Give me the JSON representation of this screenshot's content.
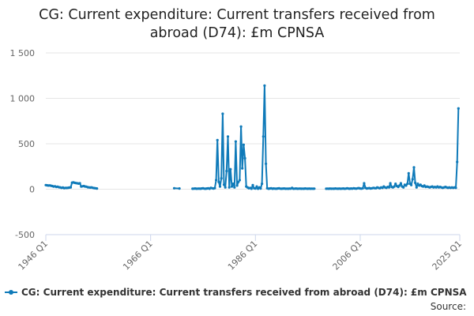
{
  "title_line1": "CG: Current expenditure: Current transfers received from",
  "title_line2": "abroad (D74): £m CPNSA",
  "source_label": "Source:",
  "colors": {
    "series": "#0f7ab9",
    "grid": "#e6e6e6",
    "axis": "#ccd6eb"
  },
  "chart_data": {
    "type": "line",
    "title": "CG: Current expenditure: Current transfers received from abroad (D74): £m CPNSA",
    "xlabel": "",
    "ylabel": "",
    "ylim": [
      -500,
      1500
    ],
    "yticks": [
      -500,
      0,
      500,
      1000,
      1500
    ],
    "ytick_labels": [
      "-500",
      "0",
      "500",
      "1 000",
      "1 500"
    ],
    "xlim": [
      1946.0,
      2025.0
    ],
    "xticks": [
      1946.0,
      1966.0,
      1986.0,
      2006.0,
      2025.0
    ],
    "xtick_labels": [
      "1946 Q1",
      "1966 Q1",
      "1986 Q1",
      "2006 Q1",
      "2025 Q1"
    ],
    "grid": true,
    "legend_position": "bottom-left",
    "x_unit": "quarters (year + (quarter-1)/4)",
    "series": [
      {
        "name": "CG: Current expenditure: Current transfers received from abroad (D74): £m CPNSA",
        "points": [
          [
            1946.0,
            45
          ],
          [
            1946.25,
            43
          ],
          [
            1946.5,
            40
          ],
          [
            1946.75,
            42
          ],
          [
            1947.0,
            38
          ],
          [
            1947.25,
            35
          ],
          [
            1947.5,
            30
          ],
          [
            1947.75,
            32
          ],
          [
            1948.0,
            25
          ],
          [
            1948.25,
            28
          ],
          [
            1948.5,
            22
          ],
          [
            1948.75,
            20
          ],
          [
            1949.0,
            15
          ],
          [
            1949.25,
            18
          ],
          [
            1949.5,
            12
          ],
          [
            1949.75,
            15
          ],
          [
            1950.0,
            14
          ],
          [
            1950.25,
            16
          ],
          [
            1950.5,
            18
          ],
          [
            1950.75,
            20
          ],
          [
            1951.0,
            72
          ],
          [
            1951.25,
            75
          ],
          [
            1951.5,
            70
          ],
          [
            1951.75,
            68
          ],
          [
            1952.0,
            65
          ],
          [
            1952.25,
            62
          ],
          [
            1952.5,
            65
          ],
          [
            1952.75,
            30
          ],
          [
            1953.0,
            32
          ],
          [
            1953.25,
            35
          ],
          [
            1953.5,
            30
          ],
          [
            1953.75,
            28
          ],
          [
            1954.0,
            22
          ],
          [
            1954.25,
            20
          ],
          [
            1954.5,
            18
          ],
          [
            1954.75,
            20
          ],
          [
            1955.0,
            15
          ],
          [
            1955.25,
            12
          ],
          [
            1955.5,
            10
          ],
          [
            1955.75,
            8
          ],
          null,
          [
            1970.5,
            10
          ],
          [
            1971.5,
            8
          ],
          null,
          [
            1974.0,
            5
          ],
          [
            1974.25,
            6
          ],
          [
            1974.5,
            8
          ],
          [
            1974.75,
            5
          ],
          [
            1975.0,
            6
          ],
          [
            1975.25,
            7
          ],
          [
            1975.5,
            5
          ],
          [
            1975.75,
            8
          ],
          [
            1976.0,
            10
          ],
          [
            1976.25,
            6
          ],
          [
            1976.5,
            5
          ],
          [
            1976.75,
            8
          ],
          [
            1977.0,
            10
          ],
          [
            1977.25,
            5
          ],
          [
            1977.5,
            15
          ],
          [
            1977.75,
            10
          ],
          [
            1978.0,
            8
          ],
          [
            1978.25,
            12
          ],
          [
            1978.5,
            100
          ],
          [
            1978.75,
            540
          ],
          [
            1979.0,
            80
          ],
          [
            1979.25,
            30
          ],
          [
            1979.5,
            120
          ],
          [
            1979.75,
            830
          ],
          [
            1980.0,
            50
          ],
          [
            1980.25,
            20
          ],
          [
            1980.5,
            200
          ],
          [
            1980.75,
            580
          ],
          [
            1981.0,
            20
          ],
          [
            1981.25,
            220
          ],
          [
            1981.5,
            30
          ],
          [
            1981.75,
            60
          ],
          [
            1982.0,
            20
          ],
          [
            1982.25,
            525
          ],
          [
            1982.5,
            40
          ],
          [
            1982.75,
            80
          ],
          [
            1983.0,
            100
          ],
          [
            1983.25,
            690
          ],
          [
            1983.5,
            230
          ],
          [
            1983.75,
            490
          ],
          [
            1984.0,
            340
          ],
          [
            1984.25,
            30
          ],
          [
            1984.5,
            20
          ],
          [
            1984.75,
            10
          ],
          [
            1985.0,
            15
          ],
          [
            1985.25,
            5
          ],
          [
            1985.5,
            45
          ],
          [
            1985.75,
            10
          ],
          [
            1986.0,
            8
          ],
          [
            1986.25,
            30
          ],
          [
            1986.5,
            5
          ],
          [
            1986.75,
            20
          ],
          [
            1987.0,
            8
          ],
          [
            1987.25,
            60
          ],
          [
            1987.5,
            580
          ],
          [
            1987.75,
            1140
          ],
          [
            1988.0,
            280
          ],
          [
            1988.25,
            10
          ],
          [
            1988.5,
            5
          ],
          [
            1988.75,
            8
          ],
          [
            1989.0,
            10
          ],
          [
            1989.25,
            5
          ],
          [
            1989.5,
            8
          ],
          [
            1989.75,
            6
          ],
          [
            1990.0,
            5
          ],
          [
            1990.25,
            8
          ],
          [
            1990.5,
            10
          ],
          [
            1990.75,
            6
          ],
          [
            1991.0,
            5
          ],
          [
            1991.25,
            7
          ],
          [
            1991.5,
            8
          ],
          [
            1991.75,
            5
          ],
          [
            1992.0,
            6
          ],
          [
            1992.25,
            5
          ],
          [
            1992.5,
            7
          ],
          [
            1992.75,
            6
          ],
          [
            1993.0,
            15
          ],
          [
            1993.25,
            5
          ],
          [
            1993.5,
            6
          ],
          [
            1993.75,
            8
          ],
          [
            1994.0,
            5
          ],
          [
            1994.25,
            6
          ],
          [
            1994.5,
            7
          ],
          [
            1994.75,
            5
          ],
          [
            1995.0,
            6
          ],
          [
            1995.25,
            5
          ],
          [
            1995.5,
            8
          ],
          [
            1995.75,
            6
          ],
          [
            1996.0,
            5
          ],
          [
            1996.25,
            7
          ],
          [
            1996.5,
            5
          ],
          [
            1996.75,
            6
          ],
          [
            1997.0,
            5
          ],
          [
            1997.25,
            6
          ],
          null,
          [
            1999.5,
            5
          ],
          [
            1999.75,
            6
          ],
          [
            2000.0,
            5
          ],
          [
            2000.25,
            7
          ],
          [
            2000.5,
            5
          ],
          [
            2000.75,
            6
          ],
          [
            2001.0,
            5
          ],
          [
            2001.25,
            8
          ],
          [
            2001.5,
            6
          ],
          [
            2001.75,
            5
          ],
          [
            2002.0,
            7
          ],
          [
            2002.25,
            5
          ],
          [
            2002.5,
            6
          ],
          [
            2002.75,
            8
          ],
          [
            2003.0,
            5
          ],
          [
            2003.25,
            6
          ],
          [
            2003.5,
            10
          ],
          [
            2003.75,
            7
          ],
          [
            2004.0,
            5
          ],
          [
            2004.25,
            8
          ],
          [
            2004.5,
            6
          ],
          [
            2004.75,
            10
          ],
          [
            2005.0,
            8
          ],
          [
            2005.25,
            6
          ],
          [
            2005.5,
            10
          ],
          [
            2005.75,
            12
          ],
          [
            2006.0,
            8
          ],
          [
            2006.25,
            6
          ],
          [
            2006.5,
            10
          ],
          [
            2006.75,
            65
          ],
          [
            2007.0,
            15
          ],
          [
            2007.25,
            8
          ],
          [
            2007.5,
            10
          ],
          [
            2007.75,
            12
          ],
          [
            2008.0,
            8
          ],
          [
            2008.25,
            10
          ],
          [
            2008.5,
            15
          ],
          [
            2008.75,
            12
          ],
          [
            2009.0,
            10
          ],
          [
            2009.25,
            20
          ],
          [
            2009.5,
            15
          ],
          [
            2009.75,
            10
          ],
          [
            2010.0,
            20
          ],
          [
            2010.25,
            15
          ],
          [
            2010.5,
            30
          ],
          [
            2010.75,
            20
          ],
          [
            2011.0,
            15
          ],
          [
            2011.25,
            25
          ],
          [
            2011.5,
            20
          ],
          [
            2011.75,
            65
          ],
          [
            2012.0,
            25
          ],
          [
            2012.25,
            20
          ],
          [
            2012.5,
            30
          ],
          [
            2012.75,
            60
          ],
          [
            2013.0,
            35
          ],
          [
            2013.25,
            25
          ],
          [
            2013.5,
            40
          ],
          [
            2013.75,
            65
          ],
          [
            2014.0,
            30
          ],
          [
            2014.25,
            20
          ],
          [
            2014.5,
            50
          ],
          [
            2014.75,
            40
          ],
          [
            2015.0,
            60
          ],
          [
            2015.25,
            175
          ],
          [
            2015.5,
            60
          ],
          [
            2015.75,
            45
          ],
          [
            2016.0,
            110
          ],
          [
            2016.25,
            240
          ],
          [
            2016.5,
            70
          ],
          [
            2016.75,
            20
          ],
          [
            2017.0,
            60
          ],
          [
            2017.25,
            40
          ],
          [
            2017.5,
            50
          ],
          [
            2017.75,
            35
          ],
          [
            2018.0,
            30
          ],
          [
            2018.25,
            40
          ],
          [
            2018.5,
            25
          ],
          [
            2018.75,
            30
          ],
          [
            2019.0,
            25
          ],
          [
            2019.25,
            20
          ],
          [
            2019.5,
            25
          ],
          [
            2019.75,
            30
          ],
          [
            2020.0,
            20
          ],
          [
            2020.25,
            25
          ],
          [
            2020.5,
            20
          ],
          [
            2020.75,
            30
          ],
          [
            2021.0,
            20
          ],
          [
            2021.25,
            25
          ],
          [
            2021.5,
            20
          ],
          [
            2021.75,
            15
          ],
          [
            2022.0,
            20
          ],
          [
            2022.25,
            25
          ],
          [
            2022.5,
            20
          ],
          [
            2022.75,
            15
          ],
          [
            2023.0,
            20
          ],
          [
            2023.25,
            15
          ],
          [
            2023.5,
            20
          ],
          [
            2023.75,
            15
          ],
          [
            2024.0,
            20
          ],
          [
            2024.25,
            15
          ],
          [
            2024.5,
            300
          ],
          [
            2024.75,
            890
          ]
        ]
      }
    ]
  }
}
